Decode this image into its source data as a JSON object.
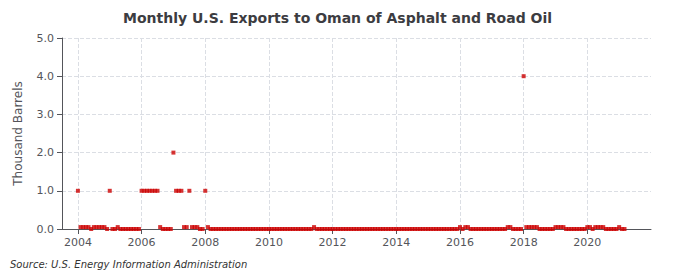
{
  "chart_data": {
    "type": "scatter",
    "title": "Monthly U.S. Exports to Oman of Asphalt and Road Oil",
    "ylabel": "Thousand Barrels",
    "annotation": "Source: U.S. Energy Information Administration",
    "marker": "square",
    "color": "#cc0000",
    "grid": true,
    "xlim": [
      2003.5,
      2022.0
    ],
    "ylim": [
      0.0,
      5.0
    ],
    "xticks": [
      2004,
      2006,
      2008,
      2010,
      2012,
      2014,
      2016,
      2018,
      2020
    ],
    "yticks": [
      {
        "value": 0,
        "label": "0.0"
      },
      {
        "value": 1,
        "label": "1.0"
      },
      {
        "value": 2,
        "label": "2.0"
      },
      {
        "value": 3,
        "label": "3.0"
      },
      {
        "value": 4,
        "label": "4.0"
      },
      {
        "value": 5,
        "label": "5.0"
      }
    ],
    "x": [
      2004.0,
      2004.083,
      2004.167,
      2004.25,
      2004.333,
      2004.417,
      2004.5,
      2004.583,
      2004.667,
      2004.75,
      2004.833,
      2004.917,
      2005.0,
      2005.083,
      2005.167,
      2005.25,
      2005.333,
      2005.417,
      2005.5,
      2005.583,
      2005.667,
      2005.75,
      2005.833,
      2005.917,
      2006.0,
      2006.083,
      2006.167,
      2006.25,
      2006.333,
      2006.417,
      2006.5,
      2006.583,
      2006.667,
      2006.75,
      2006.833,
      2006.917,
      2007.0,
      2007.083,
      2007.167,
      2007.25,
      2007.333,
      2007.417,
      2007.5,
      2007.583,
      2007.667,
      2007.75,
      2007.833,
      2007.917,
      2008.0,
      2008.083,
      2008.167,
      2008.25,
      2008.333,
      2008.417,
      2008.5,
      2008.583,
      2008.667,
      2008.75,
      2008.833,
      2008.917,
      2009.0,
      2009.083,
      2009.167,
      2009.25,
      2009.333,
      2009.417,
      2009.5,
      2009.583,
      2009.667,
      2009.75,
      2009.833,
      2009.917,
      2010.0,
      2010.083,
      2010.167,
      2010.25,
      2010.333,
      2010.417,
      2010.5,
      2010.583,
      2010.667,
      2010.75,
      2010.833,
      2010.917,
      2011.0,
      2011.083,
      2011.167,
      2011.25,
      2011.333,
      2011.417,
      2011.5,
      2011.583,
      2011.667,
      2011.75,
      2011.833,
      2011.917,
      2012.0,
      2012.083,
      2012.167,
      2012.25,
      2012.333,
      2012.417,
      2012.5,
      2012.583,
      2012.667,
      2012.75,
      2012.833,
      2012.917,
      2013.0,
      2013.083,
      2013.167,
      2013.25,
      2013.333,
      2013.417,
      2013.5,
      2013.583,
      2013.667,
      2013.75,
      2013.833,
      2013.917,
      2014.0,
      2014.083,
      2014.167,
      2014.25,
      2014.333,
      2014.417,
      2014.5,
      2014.583,
      2014.667,
      2014.75,
      2014.833,
      2014.917,
      2015.0,
      2015.083,
      2015.167,
      2015.25,
      2015.333,
      2015.417,
      2015.5,
      2015.583,
      2015.667,
      2015.75,
      2015.833,
      2015.917,
      2016.0,
      2016.083,
      2016.167,
      2016.25,
      2016.333,
      2016.417,
      2016.5,
      2016.583,
      2016.667,
      2016.75,
      2016.833,
      2016.917,
      2017.0,
      2017.083,
      2017.167,
      2017.25,
      2017.333,
      2017.417,
      2017.5,
      2017.583,
      2017.667,
      2017.75,
      2017.833,
      2017.917,
      2018.0,
      2018.083,
      2018.167,
      2018.25,
      2018.333,
      2018.417,
      2018.5,
      2018.583,
      2018.667,
      2018.75,
      2018.833,
      2018.917,
      2019.0,
      2019.083,
      2019.167,
      2019.25,
      2019.333,
      2019.417,
      2019.5,
      2019.583,
      2019.667,
      2019.75,
      2019.833,
      2019.917,
      2020.0,
      2020.083,
      2020.167,
      2020.25,
      2020.333,
      2020.417,
      2020.5,
      2020.583,
      2020.667,
      2020.75,
      2020.833,
      2020.917,
      2021.0,
      2021.083,
      2021.167
    ],
    "values": [
      1.0,
      0.05,
      0.05,
      0.05,
      0.05,
      0.0,
      0.05,
      0.05,
      0.05,
      0.05,
      0.05,
      0.0,
      1.0,
      0.0,
      0.0,
      0.05,
      0.0,
      0.0,
      0.0,
      0.0,
      0.0,
      0.0,
      0.0,
      0.0,
      1.0,
      1.0,
      1.0,
      1.0,
      1.0,
      1.0,
      1.0,
      0.05,
      0.0,
      0.0,
      0.0,
      0.0,
      2.0,
      1.0,
      1.0,
      1.0,
      0.05,
      0.05,
      1.0,
      0.05,
      0.05,
      0.05,
      0.0,
      0.0,
      1.0,
      0.05,
      0.0,
      0.0,
      0.0,
      0.0,
      0.0,
      0.0,
      0.0,
      0.0,
      0.0,
      0.0,
      0.0,
      0.0,
      0.0,
      0.0,
      0.0,
      0.0,
      0.0,
      0.0,
      0.0,
      0.0,
      0.0,
      0.0,
      0.0,
      0.0,
      0.0,
      0.0,
      0.0,
      0.0,
      0.0,
      0.0,
      0.0,
      0.0,
      0.0,
      0.0,
      0.0,
      0.0,
      0.0,
      0.0,
      0.0,
      0.05,
      0.0,
      0.0,
      0.0,
      0.0,
      0.0,
      0.0,
      0.0,
      0.0,
      0.0,
      0.0,
      0.0,
      0.0,
      0.0,
      0.0,
      0.0,
      0.0,
      0.0,
      0.0,
      0.0,
      0.0,
      0.0,
      0.0,
      0.0,
      0.0,
      0.0,
      0.0,
      0.0,
      0.0,
      0.0,
      0.0,
      0.0,
      0.0,
      0.0,
      0.0,
      0.0,
      0.0,
      0.0,
      0.0,
      0.0,
      0.0,
      0.0,
      0.0,
      0.0,
      0.0,
      0.0,
      0.0,
      0.0,
      0.0,
      0.0,
      0.0,
      0.0,
      0.0,
      0.0,
      0.0,
      0.05,
      0.0,
      0.05,
      0.05,
      0.0,
      0.0,
      0.0,
      0.0,
      0.0,
      0.0,
      0.0,
      0.0,
      0.0,
      0.0,
      0.0,
      0.0,
      0.0,
      0.0,
      0.05,
      0.05,
      0.0,
      0.0,
      0.0,
      0.0,
      4.0,
      0.05,
      0.05,
      0.05,
      0.05,
      0.05,
      0.0,
      0.0,
      0.0,
      0.0,
      0.0,
      0.0,
      0.05,
      0.05,
      0.05,
      0.05,
      0.0,
      0.0,
      0.0,
      0.0,
      0.0,
      0.0,
      0.0,
      0.0,
      0.05,
      0.05,
      0.0,
      0.05,
      0.05,
      0.05,
      0.05,
      0.0,
      0.0,
      0.0,
      0.0,
      0.0,
      0.05,
      0.0,
      0.0
    ]
  }
}
